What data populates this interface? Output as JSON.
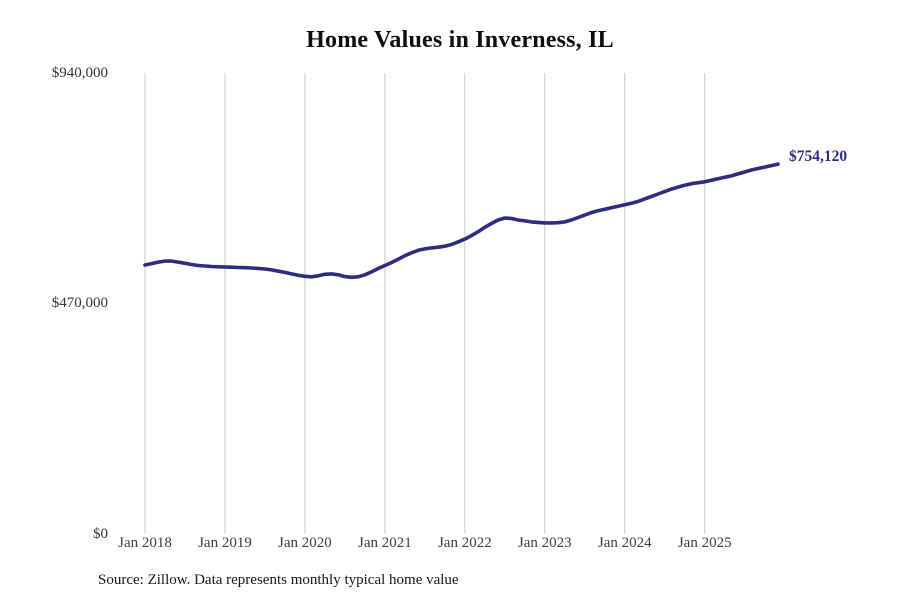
{
  "title": "Home Values in Inverness, IL",
  "source_note": "Source: Zillow. Data represents monthly typical home value",
  "colors": {
    "line": "#2f2b7e",
    "grid": "#c9c9c9",
    "title_text": "#0e0e0e",
    "axis_text": "#3c3c3c",
    "end_label_text": "#2f2b7e"
  },
  "chart_data": {
    "type": "line",
    "title": "Home Values in Inverness, IL",
    "x_frequency": "monthly",
    "x_start": "Jan 2018",
    "x_end": "Dec 2025",
    "categories": [
      "Jan 2018",
      "Jan 2019",
      "Jan 2020",
      "Jan 2021",
      "Jan 2022",
      "Jan 2023",
      "Jan 2024",
      "Jan 2025"
    ],
    "y_ticks": [
      {
        "value": 0,
        "label": "$0"
      },
      {
        "value": 470000,
        "label": "$470,000"
      },
      {
        "value": 940000,
        "label": "$940,000"
      }
    ],
    "ylim": [
      0,
      940000
    ],
    "grid": "vertical-only",
    "legend": "none",
    "final_value": 754120,
    "final_value_label": "$754,120",
    "series": [
      {
        "name": "Typical home value",
        "values": [
          548000,
          551000,
          554000,
          556000,
          556000,
          554000,
          551500,
          549000,
          547000,
          546000,
          545000,
          544500,
          544000,
          543500,
          543000,
          542500,
          542000,
          541000,
          540000,
          538000,
          535500,
          533000,
          530000,
          527000,
          525000,
          524000,
          526000,
          529000,
          530000,
          528000,
          524500,
          523000,
          524000,
          528000,
          534000,
          541000,
          547000,
          553000,
          560000,
          567000,
          573000,
          578000,
          581000,
          583000,
          584500,
          586500,
          590000,
          595500,
          601000,
          608000,
          616000,
          625000,
          633000,
          640000,
          644000,
          643000,
          640000,
          638000,
          636000,
          635000,
          634000,
          634000,
          634500,
          636000,
          640000,
          645000,
          650000,
          655000,
          659000,
          662000,
          665000,
          668000,
          671000,
          674000,
          678000,
          683000,
          688000,
          693000,
          698000,
          703000,
          707000,
          711000,
          714000,
          716000,
          718000,
          721000,
          724000,
          727000,
          730000,
          734000,
          738000,
          742000,
          745000,
          748000,
          751000,
          754120
        ]
      }
    ]
  }
}
